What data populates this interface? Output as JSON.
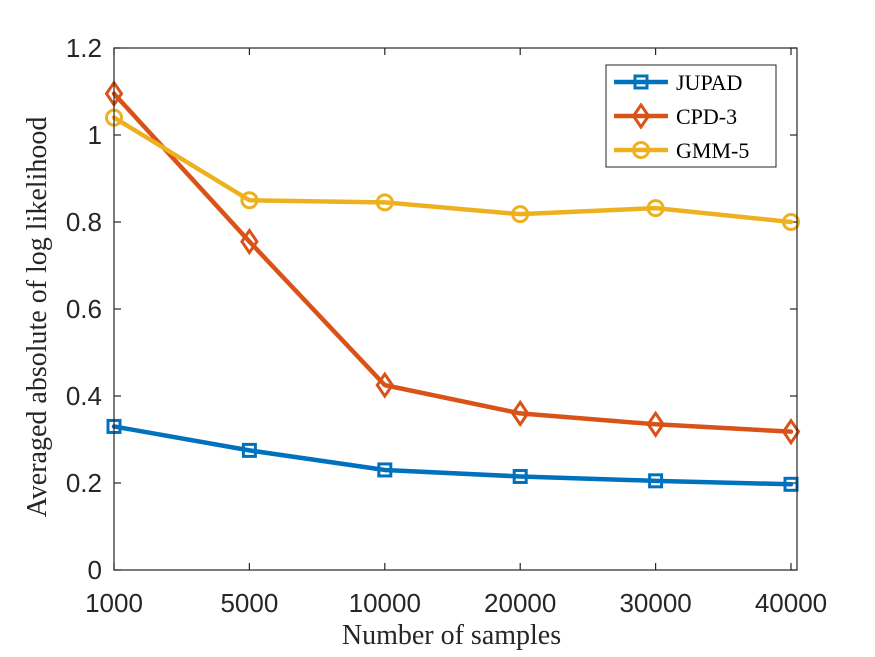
{
  "chart_data": {
    "type": "line",
    "categories": [
      "1000",
      "5000",
      "10000",
      "20000",
      "30000",
      "40000"
    ],
    "xlabel": "Number of samples",
    "ylabel": "Averaged absolute of log likelihood",
    "ylim": [
      0,
      1.2
    ],
    "yticks": [
      "0",
      "0.2",
      "0.4",
      "0.6",
      "0.8",
      "1",
      "1.2"
    ],
    "grid": false,
    "legend_position": "top-right",
    "series": [
      {
        "name": "JUPAD",
        "color": "#0072BD",
        "marker": "square",
        "values": [
          0.33,
          0.275,
          0.23,
          0.215,
          0.205,
          0.197
        ]
      },
      {
        "name": "CPD-3",
        "color": "#D95319",
        "marker": "diamond",
        "values": [
          1.095,
          0.755,
          0.425,
          0.36,
          0.335,
          0.318
        ]
      },
      {
        "name": "GMM-5",
        "color": "#EDB120",
        "marker": "circle",
        "values": [
          1.04,
          0.85,
          0.845,
          0.818,
          0.832,
          0.8
        ]
      }
    ]
  }
}
